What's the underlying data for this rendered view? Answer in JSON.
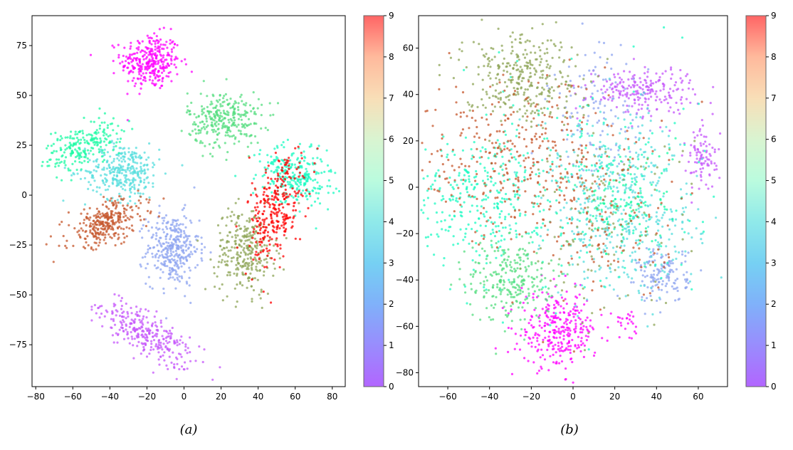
{
  "chart_data": [
    {
      "type": "scatter",
      "caption": "(a)",
      "xlim": [
        -82,
        87
      ],
      "ylim": [
        -96,
        90
      ],
      "xticks": [
        -80,
        -60,
        -40,
        -20,
        0,
        20,
        40,
        60,
        80
      ],
      "yticks": [
        -75,
        -50,
        -25,
        0,
        25,
        50,
        75
      ],
      "colorbar": {
        "min": 0,
        "max": 9,
        "ticks": [
          0,
          1,
          2,
          3,
          4,
          5,
          6,
          7,
          8,
          9
        ],
        "colormap": "rainbow"
      },
      "clusters": [
        {
          "label": 0,
          "center": [
            -18,
            67
          ],
          "spread": [
            8,
            7
          ],
          "count": 320
        },
        {
          "label": 1,
          "center": [
            -20,
            -70
          ],
          "spread": [
            14,
            5
          ],
          "count": 300,
          "rotate": -0.55
        },
        {
          "label": 2,
          "center": [
            -6,
            -27
          ],
          "spread": [
            7,
            9
          ],
          "count": 340
        },
        {
          "label": 3,
          "center": [
            -33,
            12
          ],
          "spread": [
            10,
            7
          ],
          "count": 320
        },
        {
          "label": 4,
          "center": [
            60,
            10
          ],
          "spread": [
            10,
            7
          ],
          "count": 280,
          "rotate": -0.4
        },
        {
          "label": 5,
          "center": [
            -55,
            25
          ],
          "spread": [
            11,
            5
          ],
          "count": 220,
          "rotate": 0.45
        },
        {
          "label": 6,
          "center": [
            22,
            38
          ],
          "spread": [
            10,
            7
          ],
          "count": 300
        },
        {
          "label": 7,
          "center": [
            33,
            -28
          ],
          "spread": [
            8,
            11
          ],
          "count": 300
        },
        {
          "label": 8,
          "center": [
            -42,
            -14
          ],
          "spread": [
            11,
            5
          ],
          "count": 300,
          "rotate": 0.35
        },
        {
          "label": 9,
          "center": [
            49,
            -8
          ],
          "spread": [
            7,
            13
          ],
          "count": 300,
          "rotate": -0.3
        }
      ]
    },
    {
      "type": "scatter",
      "caption": "(b)",
      "xlim": [
        -74,
        74
      ],
      "ylim": [
        -86,
        74
      ],
      "xticks": [
        -60,
        -40,
        -20,
        0,
        20,
        40,
        60
      ],
      "yticks": [
        -80,
        -60,
        -40,
        -20,
        0,
        20,
        40,
        60
      ],
      "colorbar": {
        "min": 0,
        "max": 9,
        "ticks": [
          0,
          1,
          2,
          3,
          4,
          5,
          6,
          7,
          8,
          9
        ],
        "colormap": "rainbow"
      },
      "clusters": [
        {
          "label": 0,
          "center": [
            -7,
            -62
          ],
          "spread": [
            9,
            8
          ],
          "count": 300
        },
        {
          "label": 0,
          "center": [
            25,
            -58
          ],
          "spread": [
            3,
            3
          ],
          "count": 25
        },
        {
          "label": 1,
          "center": [
            33,
            42
          ],
          "spread": [
            13,
            5
          ],
          "count": 220
        },
        {
          "label": 1,
          "center": [
            62,
            12
          ],
          "spread": [
            4,
            7
          ],
          "count": 90
        },
        {
          "label": 2,
          "center": [
            43,
            -38
          ],
          "spread": [
            6,
            6
          ],
          "count": 140
        },
        {
          "label": 2,
          "center": [
            12,
            32
          ],
          "spread": [
            12,
            14
          ],
          "count": 120
        },
        {
          "label": 3,
          "center": [
            25,
            -20
          ],
          "spread": [
            18,
            14
          ],
          "count": 280
        },
        {
          "label": 3,
          "center": [
            20,
            10
          ],
          "spread": [
            18,
            12
          ],
          "count": 180
        },
        {
          "label": 4,
          "center": [
            -45,
            -5
          ],
          "spread": [
            16,
            14
          ],
          "count": 300
        },
        {
          "label": 4,
          "center": [
            10,
            0
          ],
          "spread": [
            25,
            25
          ],
          "count": 200
        },
        {
          "label": 5,
          "center": [
            25,
            -5
          ],
          "spread": [
            12,
            12
          ],
          "count": 120
        },
        {
          "label": 6,
          "center": [
            -30,
            -40
          ],
          "spread": [
            10,
            9
          ],
          "count": 260
        },
        {
          "label": 7,
          "center": [
            -25,
            48
          ],
          "spread": [
            14,
            10
          ],
          "count": 320
        },
        {
          "label": 7,
          "center": [
            15,
            -15
          ],
          "spread": [
            20,
            20
          ],
          "count": 120
        },
        {
          "label": 8,
          "center": [
            -30,
            12
          ],
          "spread": [
            20,
            18
          ],
          "count": 300
        },
        {
          "label": 8,
          "center": [
            15,
            -10
          ],
          "spread": [
            20,
            22
          ],
          "count": 160
        }
      ]
    }
  ]
}
